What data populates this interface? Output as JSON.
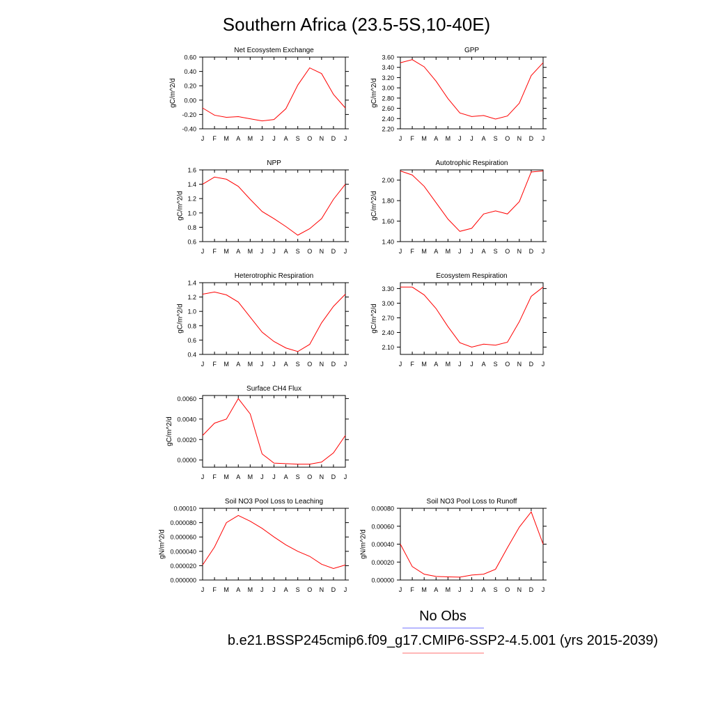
{
  "title": "Southern Africa (23.5-5S,10-40E)",
  "legend": {
    "obs_label": "No Obs",
    "model_label": "b.e21.BSSP245cmip6.f09_g17.CMIP6-SSP2-4.5.001 (yrs 2015-2039)",
    "obs_color": "#8c8cff",
    "model_color": "#ff8c8c"
  },
  "line_color": "#ff0000",
  "months": [
    "J",
    "F",
    "M",
    "A",
    "M",
    "J",
    "J",
    "A",
    "S",
    "O",
    "N",
    "D",
    "J"
  ],
  "chart_data": [
    {
      "type": "line",
      "title": "Net Ecosystem Exchange",
      "ylabel": "gC/m^2/d",
      "ylim": [
        -0.4,
        0.6
      ],
      "yticks": [
        "-0.40",
        "-0.20",
        "0.00",
        "0.20",
        "0.40",
        "0.60"
      ],
      "values": [
        -0.11,
        -0.21,
        -0.24,
        -0.23,
        -0.26,
        -0.29,
        -0.27,
        -0.12,
        0.21,
        0.45,
        0.37,
        0.08,
        -0.11
      ]
    },
    {
      "type": "line",
      "title": "GPP",
      "ylabel": "gC/m^2/d",
      "ylim": [
        2.2,
        3.6
      ],
      "yticks": [
        "2.20",
        "2.40",
        "2.60",
        "2.80",
        "3.00",
        "3.20",
        "3.40",
        "3.60"
      ],
      "values": [
        3.49,
        3.55,
        3.41,
        3.13,
        2.79,
        2.51,
        2.44,
        2.46,
        2.39,
        2.45,
        2.7,
        3.24,
        3.49
      ]
    },
    {
      "type": "line",
      "title": "NPP",
      "ylabel": "gC/m^2/d",
      "ylim": [
        0.6,
        1.6
      ],
      "yticks": [
        "0.6",
        "0.8",
        "1.0",
        "1.2",
        "1.4",
        "1.6"
      ],
      "values": [
        1.4,
        1.5,
        1.47,
        1.37,
        1.19,
        1.02,
        0.92,
        0.81,
        0.69,
        0.78,
        0.92,
        1.19,
        1.4
      ]
    },
    {
      "type": "line",
      "title": "Autotrophic Respiration",
      "ylabel": "gC/m^2/d",
      "ylim": [
        1.4,
        2.1
      ],
      "yticks": [
        "1.40",
        "1.60",
        "1.80",
        "2.00"
      ],
      "values": [
        2.09,
        2.05,
        1.94,
        1.78,
        1.62,
        1.5,
        1.53,
        1.67,
        1.7,
        1.67,
        1.79,
        2.08,
        2.09
      ]
    },
    {
      "type": "line",
      "title": "Heterotrophic Respiration",
      "ylabel": "gC/m^2/d",
      "ylim": [
        0.4,
        1.4
      ],
      "yticks": [
        "0.4",
        "0.6",
        "0.8",
        "1.0",
        "1.2",
        "1.4"
      ],
      "values": [
        1.24,
        1.27,
        1.23,
        1.13,
        0.92,
        0.71,
        0.58,
        0.49,
        0.44,
        0.54,
        0.84,
        1.07,
        1.24
      ]
    },
    {
      "type": "line",
      "title": "Ecosystem Respiration",
      "ylabel": "gC/m^2/d",
      "ylim": [
        1.95,
        3.42
      ],
      "yticks": [
        "2.10",
        "2.40",
        "2.70",
        "3.00",
        "3.30"
      ],
      "values": [
        3.33,
        3.33,
        3.17,
        2.89,
        2.52,
        2.19,
        2.1,
        2.16,
        2.14,
        2.2,
        2.62,
        3.14,
        3.33
      ]
    },
    {
      "type": "line",
      "title": "Surface CH4 Flux",
      "ylabel": "gC/m^2/d",
      "ylim": [
        -0.0007,
        0.0063
      ],
      "yticks": [
        "0.0000",
        "0.0020",
        "0.0040",
        "0.0060"
      ],
      "values": [
        0.0024,
        0.0036,
        0.004,
        0.006,
        0.0045,
        0.0006,
        -0.0003,
        -0.00035,
        -0.0004,
        -0.0004,
        -0.0002,
        0.0007,
        0.0024
      ]
    },
    {
      "type": "line",
      "title": "Soil NO3 Pool Loss to Leaching",
      "ylabel": "gN/m^2/d",
      "ylim": [
        0,
        0.0001
      ],
      "yticks": [
        "0.000000",
        "0.000020",
        "0.000040",
        "0.000060",
        "0.000080",
        "0.00010"
      ],
      "values": [
        2.1e-05,
        4.6e-05,
        8e-05,
        9e-05,
        8.2e-05,
        7.2e-05,
        6e-05,
        4.9e-05,
        4e-05,
        3.3e-05,
        2.2e-05,
        1.6e-05,
        2.1e-05
      ]
    },
    {
      "type": "line",
      "title": "Soil NO3 Pool Loss to Runoff",
      "ylabel": "gN/m^2/d",
      "ylim": [
        0,
        0.0008
      ],
      "yticks": [
        "0.00000",
        "0.00020",
        "0.00040",
        "0.00060",
        "0.00080"
      ],
      "values": [
        0.0004,
        0.00015,
        6.5e-05,
        4e-05,
        3.5e-05,
        3.2e-05,
        5.5e-05,
        6.5e-05,
        0.00012,
        0.00036,
        0.00059,
        0.00076,
        0.0004
      ]
    }
  ]
}
